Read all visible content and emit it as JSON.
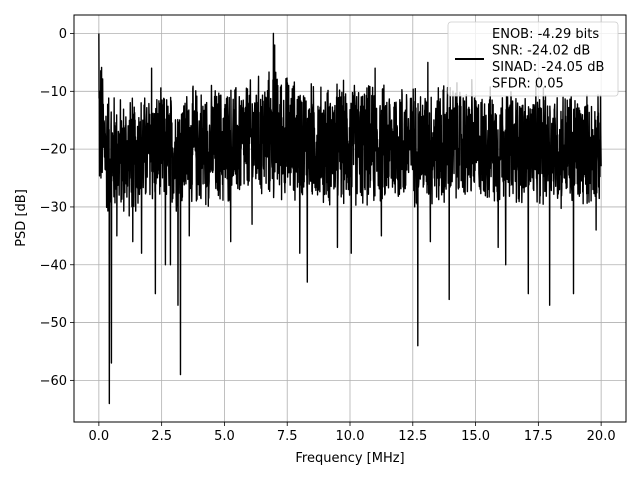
{
  "chart_data": {
    "type": "line",
    "title": "",
    "xlabel": "Frequency [MHz]",
    "ylabel": "PSD [dB]",
    "xlim": [
      -0.99,
      20.99
    ],
    "ylim": [
      -67.2,
      3.2
    ],
    "xticks": [
      0.0,
      2.5,
      5.0,
      7.5,
      10.0,
      12.5,
      15.0,
      17.5,
      20.0
    ],
    "xtick_labels": [
      "0.0",
      "2.5",
      "5.0",
      "7.5",
      "10.0",
      "12.5",
      "15.0",
      "17.5",
      "20.0"
    ],
    "yticks": [
      0,
      -10,
      -20,
      -30,
      -40,
      -50,
      -60
    ],
    "ytick_labels": [
      "0",
      "−10",
      "−20",
      "−30",
      "−40",
      "−50",
      "−60"
    ],
    "grid": true,
    "legend_position": "top-right",
    "line_color": "#000000",
    "legend_lines": [
      "ENOB: -4.29 bits",
      "SNR: -24.02 dB",
      "SINAD: -24.05 dB",
      "SFDR: 0.05"
    ],
    "series": [
      {
        "envelope": {
          "x": [
            0.0,
            0.3,
            1.0,
            2.0,
            3.0,
            4.0,
            5.0,
            6.0,
            7.0,
            8.0,
            9.0,
            10.0,
            11.0,
            12.0,
            13.0,
            14.0,
            15.0,
            16.0,
            17.0,
            18.0,
            19.0,
            20.0
          ],
          "upper": [
            0.0,
            -8,
            -10,
            -9,
            -9,
            -8,
            -8,
            -7,
            -5,
            -7,
            -8,
            -7,
            -8,
            -7,
            -8,
            -7,
            -9,
            -8,
            -9,
            -8,
            -9,
            -10
          ],
          "lower": [
            -30,
            -33,
            -33,
            -31,
            -32,
            -31,
            -31,
            -30,
            -30,
            -30,
            -31,
            -31,
            -31,
            -31,
            -31,
            -31,
            -30,
            -31,
            -31,
            -31,
            -32,
            -30
          ]
        },
        "dips": [
          {
            "x": 0.42,
            "y": -64
          },
          {
            "x": 0.5,
            "y": -57
          },
          {
            "x": 0.72,
            "y": -35
          },
          {
            "x": 1.35,
            "y": -36
          },
          {
            "x": 1.7,
            "y": -38
          },
          {
            "x": 2.25,
            "y": -45
          },
          {
            "x": 2.65,
            "y": -40
          },
          {
            "x": 2.85,
            "y": -40
          },
          {
            "x": 3.15,
            "y": -47
          },
          {
            "x": 3.25,
            "y": -59
          },
          {
            "x": 3.6,
            "y": -35
          },
          {
            "x": 5.25,
            "y": -36
          },
          {
            "x": 6.1,
            "y": -33
          },
          {
            "x": 8.0,
            "y": -38
          },
          {
            "x": 8.3,
            "y": -43
          },
          {
            "x": 9.5,
            "y": -37
          },
          {
            "x": 10.05,
            "y": -38
          },
          {
            "x": 11.25,
            "y": -35
          },
          {
            "x": 12.7,
            "y": -54
          },
          {
            "x": 13.2,
            "y": -36
          },
          {
            "x": 13.95,
            "y": -46
          },
          {
            "x": 15.9,
            "y": -37
          },
          {
            "x": 16.2,
            "y": -40
          },
          {
            "x": 17.1,
            "y": -45
          },
          {
            "x": 17.95,
            "y": -47
          },
          {
            "x": 18.9,
            "y": -45
          },
          {
            "x": 19.8,
            "y": -34
          }
        ],
        "peaks": [
          {
            "x": 0.0,
            "y": 0.0
          },
          {
            "x": 2.1,
            "y": -6
          },
          {
            "x": 6.95,
            "y": 0.0
          },
          {
            "x": 7.0,
            "y": -2
          },
          {
            "x": 11.0,
            "y": -6
          },
          {
            "x": 13.1,
            "y": -5
          },
          {
            "x": 14.85,
            "y": -8
          }
        ]
      }
    ]
  }
}
